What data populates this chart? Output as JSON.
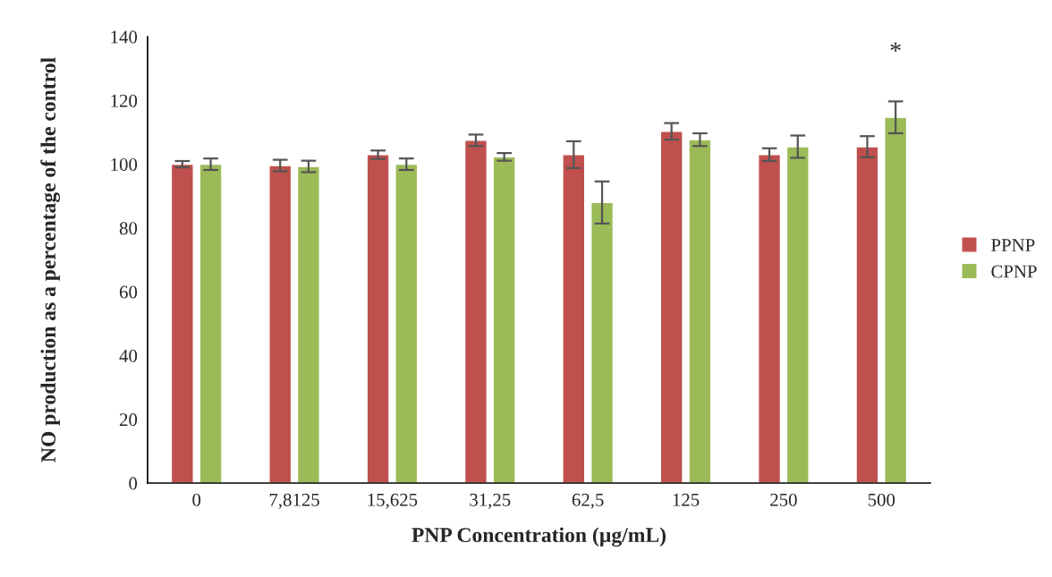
{
  "chart_data": {
    "type": "bar",
    "xlabel": "PNP Concentration (µg/mL)",
    "ylabel": "NO production as a percentage of the control",
    "categories": [
      "0",
      "7,8125",
      "15,625",
      "31,25",
      "62,5",
      "125",
      "250",
      "500"
    ],
    "series": [
      {
        "name": "PPNP",
        "color": "#c0504d",
        "values": [
          100,
          99.6,
          103,
          107.5,
          103,
          110.3,
          103,
          105.5
        ],
        "errors": [
          1,
          1.8,
          1.3,
          1.8,
          4.2,
          2.6,
          2,
          3.3
        ]
      },
      {
        "name": "CPNP",
        "color": "#9bbb59",
        "values": [
          100,
          99.3,
          100,
          102.3,
          88,
          107.7,
          105.5,
          114.7
        ],
        "errors": [
          1.8,
          1.8,
          1.8,
          1.2,
          6.6,
          2,
          3.5,
          5
        ]
      }
    ],
    "ylim": [
      0,
      140
    ],
    "yticks": [
      0,
      20,
      40,
      60,
      80,
      100,
      120,
      140
    ],
    "annotations": [
      "*"
    ],
    "grid": false,
    "legend": "right"
  }
}
